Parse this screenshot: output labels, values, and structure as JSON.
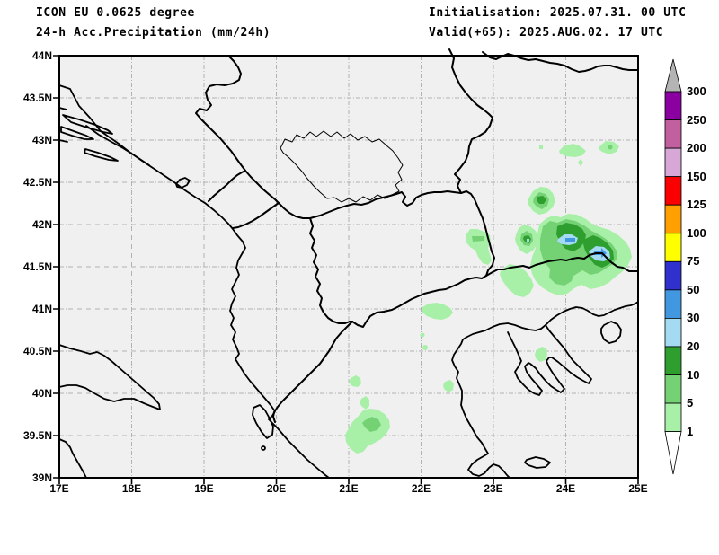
{
  "header": {
    "model": "ICON EU 0.0625 degree",
    "product": "24-h Acc.Precipitation (mm/24h)",
    "initialisation": "Initialisation: 2025.07.31. 00 UTC",
    "valid": "Valid(+65): 2025.AUG.02. 17 UTC"
  },
  "axes": {
    "x_ticks": [
      "17E",
      "18E",
      "19E",
      "20E",
      "21E",
      "22E",
      "23E",
      "24E",
      "25E"
    ],
    "y_ticks": [
      "44N",
      "43.5N",
      "43N",
      "42.5N",
      "42N",
      "41.5N",
      "41N",
      "40.5N",
      "40N",
      "39.5N",
      "39N"
    ]
  },
  "colorbar": {
    "tick_values": [
      "300",
      "250",
      "200",
      "150",
      "125",
      "100",
      "75",
      "50",
      "30",
      "20",
      "10",
      "5",
      "1"
    ],
    "segment_colors_top_to_bottom": [
      "#8a00a0",
      "#c25f9e",
      "#d7a7d7",
      "#fb0000",
      "#ffa000",
      "#ffff00",
      "#3030cc",
      "#4298e0",
      "#a4daf2",
      "#2e9e2e",
      "#74d274",
      "#a8f0a8"
    ],
    "overflow_color": "#b4b4b4",
    "underflow_color": "#ffffff"
  },
  "map_data": {
    "type": "filled-contour precipitation map",
    "lon_range": [
      "17E",
      "25E"
    ],
    "lat_range": [
      "39N",
      "44N"
    ],
    "units": "mm/24h",
    "precipitation_cells": [
      {
        "lon": 24.1,
        "lat": 41.85,
        "peak_mm": "30-50"
      },
      {
        "lon": 24.4,
        "lat": 41.7,
        "peak_mm": "30-50"
      },
      {
        "lon": 23.5,
        "lat": 41.8,
        "peak_mm": "20-30"
      },
      {
        "lon": 23.7,
        "lat": 42.25,
        "peak_mm": "10-20"
      },
      {
        "lon": 22.7,
        "lat": 41.8,
        "peak_mm": "5-10"
      },
      {
        "lon": 24.0,
        "lat": 42.85,
        "peak_mm": "1-5"
      },
      {
        "lon": 24.6,
        "lat": 42.85,
        "peak_mm": "5-10"
      },
      {
        "lon": 22.3,
        "lat": 41.0,
        "peak_mm": "1-5"
      },
      {
        "lon": 22.35,
        "lat": 40.1,
        "peak_mm": "1-5"
      },
      {
        "lon": 23.65,
        "lat": 40.45,
        "peak_mm": "1-5"
      },
      {
        "lon": 21.2,
        "lat": 39.5,
        "peak_mm": "5-10"
      }
    ]
  },
  "colors": {
    "map_background": "#f0f0f0",
    "gridline": "#b2b2b2",
    "outline": "#000000",
    "precip_1_5": "#a8f0a8",
    "precip_5_10": "#74d274",
    "precip_10_20": "#2e9e2e",
    "precip_20_30": "#a4daf2",
    "precip_30_50": "#4298e0"
  },
  "layout_constants": {
    "note": "axis tick pixel geometry used by renderer"
  }
}
